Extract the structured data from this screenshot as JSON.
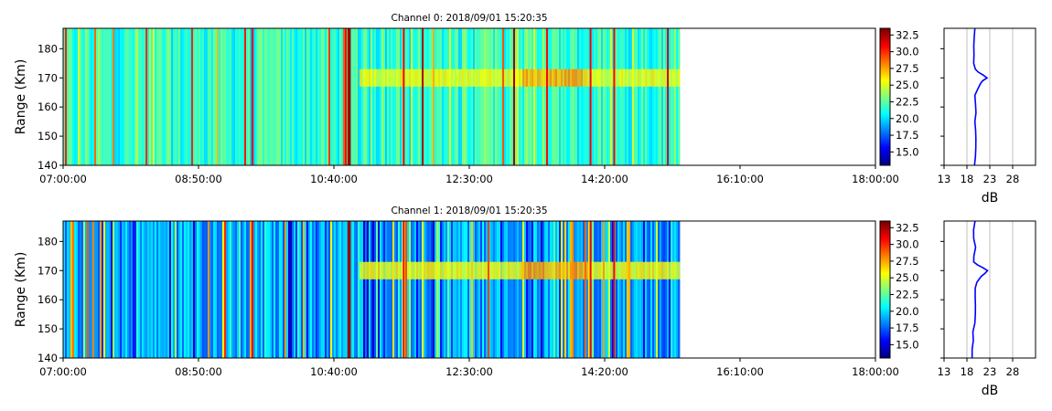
{
  "chart_data": [
    {
      "type": "heatmap",
      "title": "Channel 0: 2018/09/01 15:20:35",
      "ylabel": "Range (Km)",
      "xlabel": "",
      "x_ticks": [
        "07:00:00",
        "08:50:00",
        "10:40:00",
        "12:30:00",
        "14:20:00",
        "16:10:00",
        "18:00:00"
      ],
      "xlim_hours": [
        7.0,
        18.0
      ],
      "data_end_hour": 15.33,
      "y_ticks": [
        140,
        150,
        160,
        170,
        180
      ],
      "ylim": [
        140,
        187
      ],
      "colorscale": "jet",
      "color_range": [
        13,
        33.5
      ],
      "colorbar_ticks": [
        "15.0",
        "17.5",
        "20.0",
        "22.5",
        "25.0",
        "27.5",
        "30.0",
        "32.5"
      ],
      "background_level": 21.5,
      "layer": {
        "center_km": 170,
        "peak_db": 25.5
      },
      "profile": {
        "xlabel": "dB",
        "x_ticks": [
          "13",
          "18",
          "23",
          "28"
        ],
        "xlim": [
          13,
          33
        ],
        "grid": true,
        "line_color": "#0000ff",
        "range_km": [
          140,
          143,
          146,
          149,
          152,
          155,
          158,
          161,
          164,
          166,
          168,
          169,
          170,
          171,
          172,
          173,
          175,
          178,
          181,
          184,
          187
        ],
        "db": [
          19.6,
          19.7,
          19.9,
          20.0,
          20.1,
          19.9,
          20.1,
          20.0,
          19.9,
          20.3,
          21.0,
          21.5,
          22.3,
          21.6,
          20.4,
          19.8,
          19.6,
          19.7,
          19.6,
          19.6,
          19.9
        ]
      }
    },
    {
      "type": "heatmap",
      "title": "Channel 1: 2018/09/01 15:20:35",
      "ylabel": "Range (Km)",
      "xlabel": "",
      "x_ticks": [
        "07:00:00",
        "08:50:00",
        "10:40:00",
        "12:30:00",
        "14:20:00",
        "16:10:00",
        "18:00:00"
      ],
      "xlim_hours": [
        7.0,
        18.0
      ],
      "data_end_hour": 15.33,
      "y_ticks": [
        140,
        150,
        160,
        170,
        180
      ],
      "ylim": [
        140,
        187
      ],
      "colorscale": "jet",
      "color_range": [
        13,
        33.5
      ],
      "colorbar_ticks": [
        "15.0",
        "17.5",
        "20.0",
        "22.5",
        "25.0",
        "27.5",
        "30.0",
        "32.5"
      ],
      "background_level": 19.0,
      "layer": {
        "center_km": 170,
        "peak_db": 25.5
      },
      "profile": {
        "xlabel": "dB",
        "x_ticks": [
          "13",
          "18",
          "23",
          "28"
        ],
        "xlim": [
          13,
          33
        ],
        "grid": true,
        "line_color": "#0000ff",
        "range_km": [
          140,
          143,
          146,
          149,
          152,
          155,
          158,
          161,
          164,
          166,
          168,
          169,
          170,
          171,
          172,
          173,
          175,
          178,
          181,
          184,
          187
        ],
        "db": [
          19.2,
          19.3,
          19.4,
          19.5,
          19.7,
          19.8,
          19.9,
          20.0,
          19.9,
          20.2,
          21.2,
          22.0,
          22.4,
          21.3,
          20.1,
          19.6,
          19.6,
          19.8,
          19.6,
          19.5,
          19.6
        ]
      }
    }
  ]
}
